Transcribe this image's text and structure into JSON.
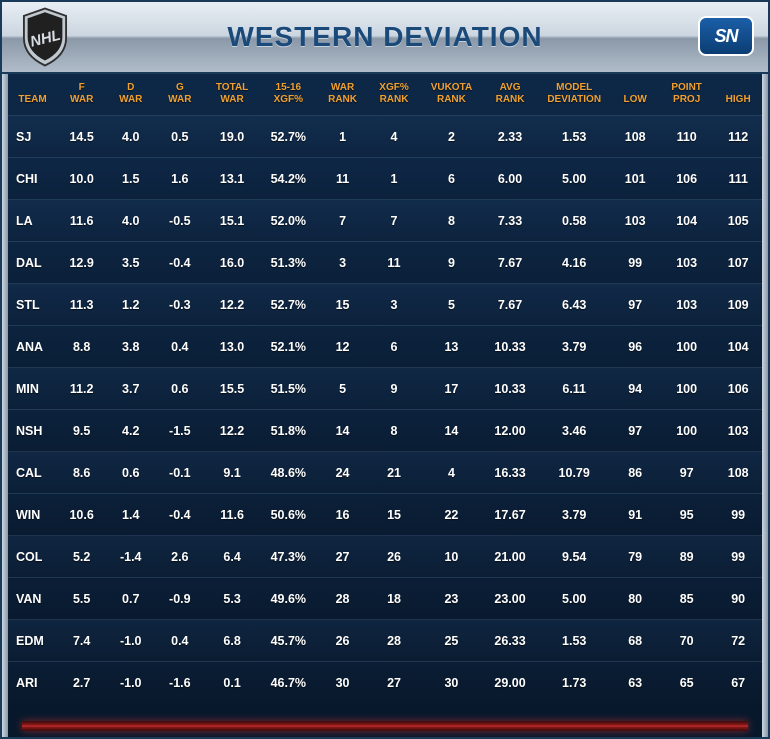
{
  "title": "WESTERN DEVIATION",
  "logos": {
    "left": "NHL",
    "right": "SN"
  },
  "colors": {
    "header_text": "#f0a030",
    "cell_text": "#ffffff",
    "bg_top": "#0e2a4a",
    "bg_bottom": "#08182b",
    "title_color": "#1a4a7a",
    "footer_accent": "#c83030"
  },
  "table": {
    "type": "table",
    "column_widths_pct": [
      6.2,
      6.2,
      6.2,
      6.2,
      7.0,
      7.2,
      6.5,
      6.5,
      8.0,
      6.8,
      9.4,
      6.0,
      7.0,
      6.0
    ],
    "columns": [
      {
        "l1": "",
        "l2": "TEAM"
      },
      {
        "l1": "F",
        "l2": "WAR"
      },
      {
        "l1": "D",
        "l2": "WAR"
      },
      {
        "l1": "G",
        "l2": "WAR"
      },
      {
        "l1": "TOTAL",
        "l2": "WAR"
      },
      {
        "l1": "15-16",
        "l2": "XGF%"
      },
      {
        "l1": "WAR",
        "l2": "RANK"
      },
      {
        "l1": "XGF%",
        "l2": "RANK"
      },
      {
        "l1": "VUKOTA",
        "l2": "RANK"
      },
      {
        "l1": "AVG",
        "l2": "RANK"
      },
      {
        "l1": "MODEL",
        "l2": "DEVIATION"
      },
      {
        "l1": "",
        "l2": "LOW"
      },
      {
        "l1": "POINT",
        "l2": "PROJ"
      },
      {
        "l1": "",
        "l2": "HIGH"
      }
    ],
    "rows": [
      [
        "SJ",
        "14.5",
        "4.0",
        "0.5",
        "19.0",
        "52.7%",
        "1",
        "4",
        "2",
        "2.33",
        "1.53",
        "108",
        "110",
        "112"
      ],
      [
        "CHI",
        "10.0",
        "1.5",
        "1.6",
        "13.1",
        "54.2%",
        "11",
        "1",
        "6",
        "6.00",
        "5.00",
        "101",
        "106",
        "111"
      ],
      [
        "LA",
        "11.6",
        "4.0",
        "-0.5",
        "15.1",
        "52.0%",
        "7",
        "7",
        "8",
        "7.33",
        "0.58",
        "103",
        "104",
        "105"
      ],
      [
        "DAL",
        "12.9",
        "3.5",
        "-0.4",
        "16.0",
        "51.3%",
        "3",
        "11",
        "9",
        "7.67",
        "4.16",
        "99",
        "103",
        "107"
      ],
      [
        "STL",
        "11.3",
        "1.2",
        "-0.3",
        "12.2",
        "52.7%",
        "15",
        "3",
        "5",
        "7.67",
        "6.43",
        "97",
        "103",
        "109"
      ],
      [
        "ANA",
        "8.8",
        "3.8",
        "0.4",
        "13.0",
        "52.1%",
        "12",
        "6",
        "13",
        "10.33",
        "3.79",
        "96",
        "100",
        "104"
      ],
      [
        "MIN",
        "11.2",
        "3.7",
        "0.6",
        "15.5",
        "51.5%",
        "5",
        "9",
        "17",
        "10.33",
        "6.11",
        "94",
        "100",
        "106"
      ],
      [
        "NSH",
        "9.5",
        "4.2",
        "-1.5",
        "12.2",
        "51.8%",
        "14",
        "8",
        "14",
        "12.00",
        "3.46",
        "97",
        "100",
        "103"
      ],
      [
        "CAL",
        "8.6",
        "0.6",
        "-0.1",
        "9.1",
        "48.6%",
        "24",
        "21",
        "4",
        "16.33",
        "10.79",
        "86",
        "97",
        "108"
      ],
      [
        "WIN",
        "10.6",
        "1.4",
        "-0.4",
        "11.6",
        "50.6%",
        "16",
        "15",
        "22",
        "17.67",
        "3.79",
        "91",
        "95",
        "99"
      ],
      [
        "COL",
        "5.2",
        "-1.4",
        "2.6",
        "6.4",
        "47.3%",
        "27",
        "26",
        "10",
        "21.00",
        "9.54",
        "79",
        "89",
        "99"
      ],
      [
        "VAN",
        "5.5",
        "0.7",
        "-0.9",
        "5.3",
        "49.6%",
        "28",
        "18",
        "23",
        "23.00",
        "5.00",
        "80",
        "85",
        "90"
      ],
      [
        "EDM",
        "7.4",
        "-1.0",
        "0.4",
        "6.8",
        "45.7%",
        "26",
        "28",
        "25",
        "26.33",
        "1.53",
        "68",
        "70",
        "72"
      ],
      [
        "ARI",
        "2.7",
        "-1.0",
        "-1.6",
        "0.1",
        "46.7%",
        "30",
        "27",
        "30",
        "29.00",
        "1.73",
        "63",
        "65",
        "67"
      ]
    ]
  }
}
